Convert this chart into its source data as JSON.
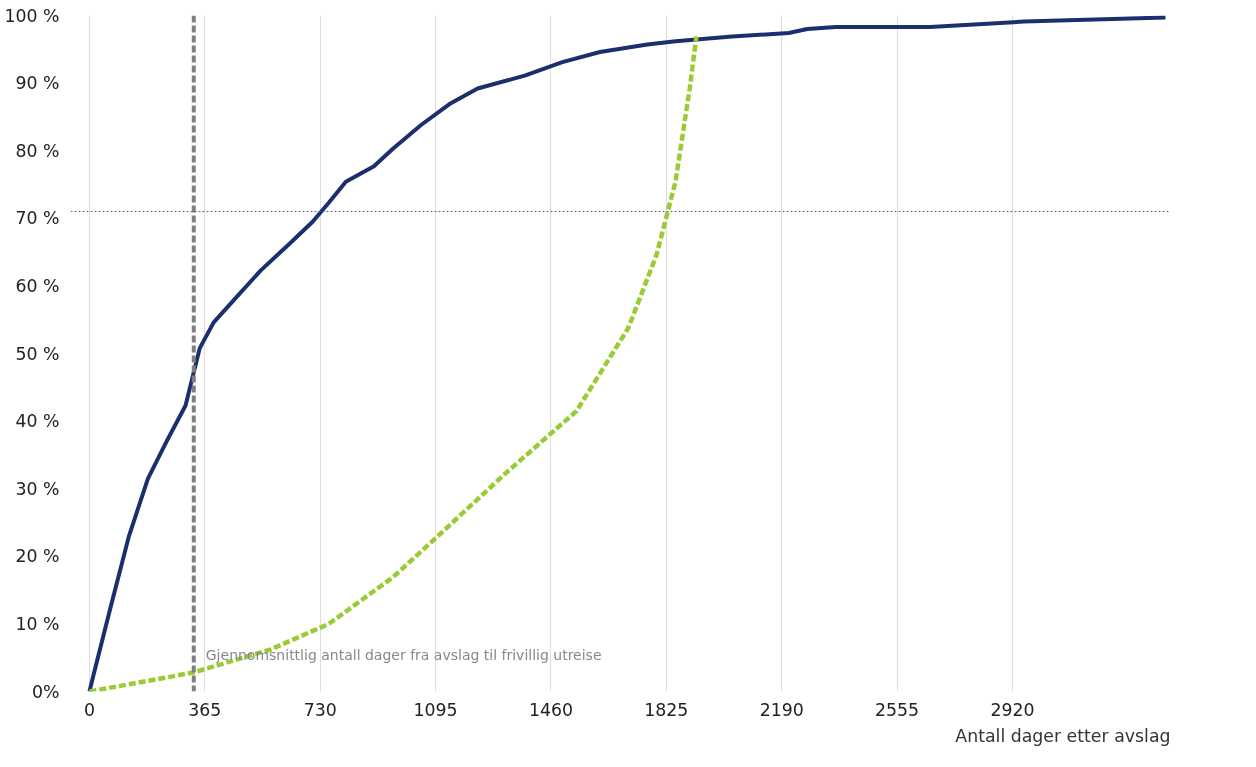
{
  "chart_data": {
    "type": "line",
    "xlabel": "Antall dager etter avslag",
    "xlim": [
      -60,
      3420
    ],
    "xticks": [
      0,
      365,
      730,
      1095,
      1460,
      1825,
      2190,
      2555,
      2920
    ],
    "ylim": [
      0,
      100
    ],
    "yticks": [
      {
        "value": 0,
        "label": "0%"
      },
      {
        "value": 10,
        "label": "10 %"
      },
      {
        "value": 20,
        "label": "20 %"
      },
      {
        "value": 30,
        "label": "30 %"
      },
      {
        "value": 40,
        "label": "40 %"
      },
      {
        "value": 50,
        "label": "50 %"
      },
      {
        "value": 60,
        "label": "60 %"
      },
      {
        "value": 70,
        "label": "70 %"
      },
      {
        "value": 80,
        "label": "80 %"
      },
      {
        "value": 90,
        "label": "90 %"
      },
      {
        "value": 100,
        "label": "100 %"
      }
    ],
    "grid": "x",
    "series": [
      {
        "color": "#1b2f6e",
        "line_style": "solid",
        "x": [
          0,
          12,
          66,
          125,
          185,
          244,
          304,
          349,
          393,
          468,
          542,
          632,
          706,
          757,
          811,
          900,
          960,
          1049,
          1139,
          1228,
          1377,
          1496,
          1615,
          1765,
          1854,
          2033,
          2212,
          2271,
          2361,
          2659,
          2957,
          3404
        ],
        "values": [
          0,
          2.3,
          12.3,
          23,
          31.5,
          37,
          42.3,
          50.8,
          54.6,
          58.5,
          62.3,
          66.2,
          69.5,
          72.3,
          75.4,
          77.7,
          80.3,
          83.8,
          86.9,
          89.2,
          91.1,
          93.1,
          94.6,
          95.7,
          96.2,
          96.9,
          97.4,
          98.0,
          98.3,
          98.3,
          99.1,
          99.7
        ]
      },
      {
        "color": "#99cc33",
        "line_style": "dashed",
        "x": [
          0,
          328,
          572,
          757,
          960,
          1121,
          1317,
          1541,
          1705,
          1794,
          1854,
          1899,
          1920
        ],
        "values": [
          0,
          2.8,
          6.2,
          10,
          16.9,
          23.8,
          32.3,
          41.5,
          53.8,
          64.6,
          75.4,
          89.2,
          96.9
        ]
      }
    ],
    "ref_lines": [
      {
        "axis": "x",
        "value": 330,
        "label": "Gjennomsnittlig antall dager fra avslag til frivillig utreise",
        "color": "#808080",
        "line_style": "dashed"
      },
      {
        "axis": "y",
        "value": 71,
        "color": "#666666",
        "line_style": "dotted"
      }
    ]
  }
}
